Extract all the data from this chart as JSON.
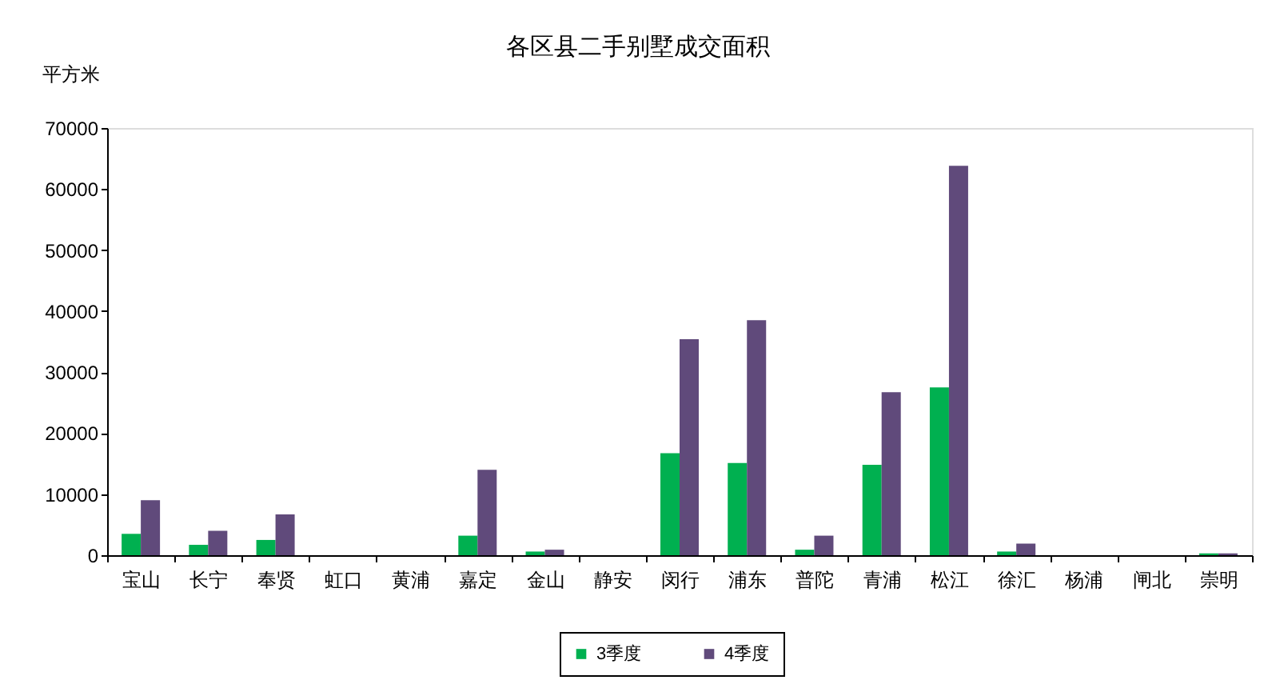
{
  "chart_data": {
    "type": "bar",
    "title": "各区县二手别墅成交面积",
    "ylabel": "平方米",
    "categories": [
      "宝山",
      "长宁",
      "奉贤",
      "虹口",
      "黄浦",
      "嘉定",
      "金山",
      "静安",
      "闵行",
      "浦东",
      "普陀",
      "青浦",
      "松江",
      "徐汇",
      "杨浦",
      "闸北",
      "崇明"
    ],
    "series": [
      {
        "name": "3季度",
        "color": "#00b050",
        "values": [
          3500,
          1700,
          2500,
          0,
          0,
          3200,
          600,
          0,
          16700,
          15100,
          900,
          14800,
          27500,
          600,
          0,
          0,
          300
        ]
      },
      {
        "name": "4季度",
        "color": "#604a7b",
        "values": [
          9000,
          4000,
          6700,
          0,
          0,
          14000,
          900,
          0,
          35400,
          38500,
          3200,
          26700,
          63800,
          1900,
          0,
          0,
          300
        ]
      }
    ],
    "ylim": [
      0,
      70000
    ],
    "yticks": [
      0,
      10000,
      20000,
      30000,
      40000,
      50000,
      60000,
      70000
    ],
    "grid": false,
    "legend": "bottom"
  }
}
